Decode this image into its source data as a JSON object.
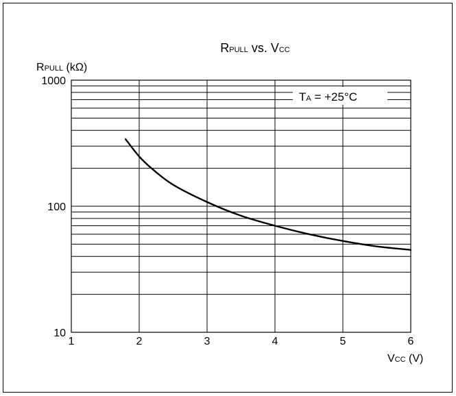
{
  "chart_data": {
    "type": "line",
    "title": {
      "main": "R",
      "main_sub": "PULL",
      "mid": " vs. V",
      "mid_sub": "CC"
    },
    "ylabel": {
      "main": "R",
      "sub": "PULL",
      "unit": " (kΩ)"
    },
    "xlabel": {
      "main": "V",
      "sub": "CC",
      "unit": " (V)"
    },
    "annotation": {
      "main": "T",
      "sub": "A",
      "rest": " = +25°C"
    },
    "x_ticks": [
      "1",
      "2",
      "3",
      "4",
      "5",
      "6"
    ],
    "y_ticks": [
      "10",
      "100",
      "1000"
    ],
    "xlim": [
      1,
      6
    ],
    "ylim": [
      10,
      1000
    ],
    "y_scale": "log",
    "grid": true,
    "series": [
      {
        "x": [
          1.8,
          2.0,
          2.2,
          2.5,
          3.0,
          3.5,
          4.0,
          4.5,
          5.0,
          5.5,
          6.0
        ],
        "y": [
          340,
          248,
          196,
          148,
          108,
          84,
          70,
          60,
          53,
          48,
          45
        ]
      }
    ]
  }
}
